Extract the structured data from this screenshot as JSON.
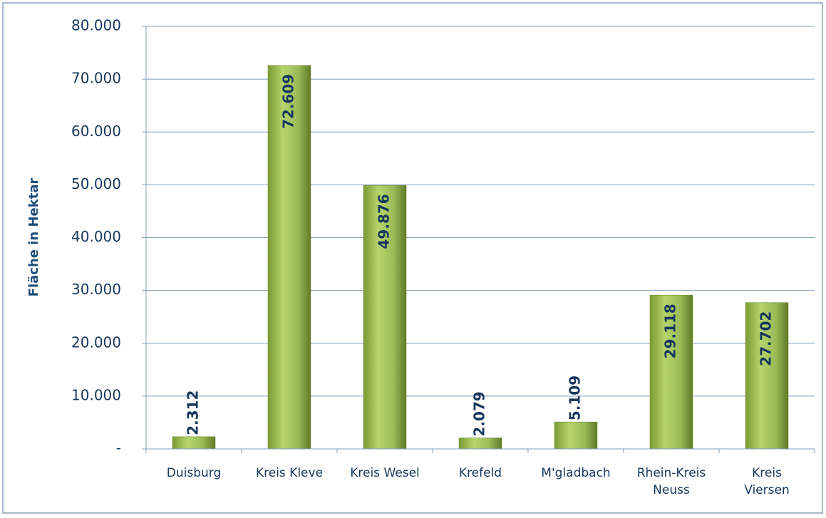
{
  "chart_data": {
    "type": "bar",
    "y_axis_label": "Fläche in Hektar",
    "categories": [
      "Duisburg",
      "Kreis Kleve",
      "Kreis Wesel",
      "Krefeld",
      "M'gladbach",
      "Rhein-Kreis\nNeuss",
      "Kreis\nViersen"
    ],
    "values": [
      2312,
      72609,
      49876,
      2079,
      5109,
      29118,
      27702
    ],
    "value_labels": [
      "2.312",
      "72.609",
      "49.876",
      "2.079",
      "5.109",
      "29.118",
      "27.702"
    ],
    "color": "#9bbb59",
    "ylim": [
      0,
      80000
    ],
    "yticks": [
      {
        "value": 0,
        "label": "-"
      },
      {
        "value": 10000,
        "label": "10.000"
      },
      {
        "value": 20000,
        "label": "20.000"
      },
      {
        "value": 30000,
        "label": "30.000"
      },
      {
        "value": 40000,
        "label": "40.000"
      },
      {
        "value": 50000,
        "label": "50.000"
      },
      {
        "value": 60000,
        "label": "60.000"
      },
      {
        "value": 70000,
        "label": "70.000"
      },
      {
        "value": 80000,
        "label": "80.000"
      }
    ],
    "grid": true
  }
}
